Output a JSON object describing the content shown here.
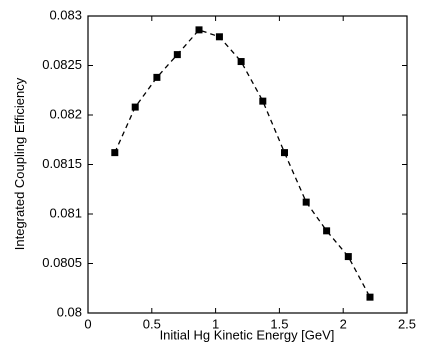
{
  "chart_data": {
    "type": "line",
    "title": "",
    "xlabel": "Initial Hg Kinetic Energy [GeV]",
    "ylabel": "Integrated Coupling Efficiency",
    "xlim": [
      0,
      2.5
    ],
    "ylim": [
      0.08,
      0.083
    ],
    "xticks": [
      0,
      0.5,
      1,
      1.5,
      2,
      2.5
    ],
    "xtick_labels": [
      "0",
      "0.5",
      "1",
      "1.5",
      "2",
      "2.5"
    ],
    "yticks": [
      0.08,
      0.0805,
      0.081,
      0.0815,
      0.082,
      0.0825,
      0.083
    ],
    "ytick_labels": [
      "0.08",
      "0.0805",
      "0.081",
      "0.0815",
      "0.082",
      "0.0825",
      "0.083"
    ],
    "grid": false,
    "line_style": "dashed",
    "marker": "square",
    "color": "#000000",
    "series": [
      {
        "x": [
          0.21,
          0.37,
          0.54,
          0.7,
          0.87,
          1.03,
          1.2,
          1.37,
          1.54,
          1.71,
          1.87,
          2.04,
          2.21
        ],
        "y": [
          0.08162,
          0.08208,
          0.08238,
          0.08261,
          0.08286,
          0.08279,
          0.08254,
          0.08214,
          0.08162,
          0.08112,
          0.08083,
          0.08057,
          0.08016
        ]
      }
    ]
  }
}
